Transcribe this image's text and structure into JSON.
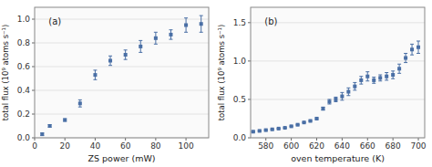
{
  "chart_data": [
    {
      "type": "scatter",
      "annotation": "(a)",
      "xlabel": "ZS power (mW)",
      "ylabel": "total flux (10⁹ atoms s⁻¹)",
      "x": [
        5,
        10,
        20,
        30,
        40,
        50,
        60,
        70,
        80,
        90,
        100,
        110
      ],
      "values": [
        0.03,
        0.1,
        0.15,
        0.29,
        0.53,
        0.65,
        0.7,
        0.77,
        0.84,
        0.87,
        0.95,
        0.96
      ],
      "yerr": [
        0.01,
        0.01,
        0.01,
        0.03,
        0.04,
        0.04,
        0.04,
        0.05,
        0.05,
        0.04,
        0.06,
        0.07
      ],
      "color": "#4a6fa5",
      "marker": "square",
      "xlim": [
        0,
        115
      ],
      "ylim": [
        0,
        1.1
      ],
      "xticks": [
        0,
        20,
        40,
        60,
        80,
        100
      ],
      "yticks": [
        {
          "value": 0.0,
          "label": "0.0"
        },
        0.2,
        0.4,
        0.6,
        0.8,
        {
          "value": 1.0,
          "label": "1.0"
        }
      ]
    },
    {
      "type": "scatter",
      "annotation": "(b)",
      "xlabel": "oven temperature (K)",
      "ylabel": "total flux (10⁹ atoms s⁻¹)",
      "x": [
        570,
        575,
        580,
        585,
        590,
        595,
        600,
        605,
        610,
        615,
        620,
        625,
        630,
        635,
        640,
        645,
        650,
        655,
        660,
        665,
        670,
        675,
        680,
        685,
        690,
        695,
        700
      ],
      "values": [
        0.08,
        0.09,
        0.1,
        0.11,
        0.12,
        0.13,
        0.15,
        0.17,
        0.2,
        0.22,
        0.25,
        0.38,
        0.47,
        0.5,
        0.54,
        0.6,
        0.67,
        0.75,
        0.8,
        0.75,
        0.78,
        0.8,
        0.82,
        0.9,
        1.04,
        1.15,
        1.18
      ],
      "yerr": [
        0.005,
        0.005,
        0.005,
        0.005,
        0.005,
        0.005,
        0.005,
        0.005,
        0.005,
        0.005,
        0.01,
        0.02,
        0.03,
        0.03,
        0.05,
        0.05,
        0.05,
        0.05,
        0.06,
        0.04,
        0.04,
        0.05,
        0.05,
        0.06,
        0.06,
        0.07,
        0.08
      ],
      "color": "#4a6fa5",
      "marker": "square",
      "xlim": [
        568,
        705
      ],
      "ylim": [
        0,
        1.7
      ],
      "xticks": [
        580,
        600,
        620,
        640,
        660,
        680,
        700
      ],
      "yticks": [
        {
          "value": 0.0,
          "label": "0.0"
        },
        0.5,
        {
          "value": 1.0,
          "label": "1.0"
        },
        1.5
      ]
    }
  ]
}
